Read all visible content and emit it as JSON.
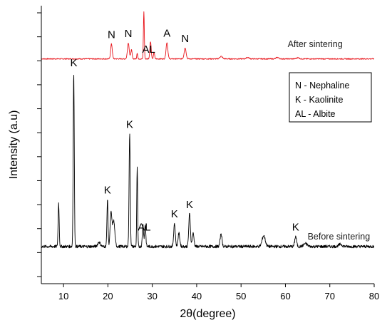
{
  "chart_data": {
    "type": "line",
    "xlabel": "2θ(degree)",
    "ylabel": "Intensity (a.u)",
    "xlim": [
      5,
      80
    ],
    "xticks": [
      10,
      20,
      30,
      40,
      50,
      60,
      70,
      80
    ],
    "xtick_labels": [
      "10",
      "20",
      "30",
      "40",
      "50",
      "60",
      "70",
      "80"
    ],
    "y_tick_count": 12,
    "series": [
      {
        "name": "After sintering",
        "color": "#e8141b",
        "baseline": 0.02,
        "noise": 0.01,
        "peaks": [
          {
            "x": 20.8,
            "y": 0.3,
            "w": 0.18
          },
          {
            "x": 24.6,
            "y": 0.32,
            "w": 0.2
          },
          {
            "x": 25.3,
            "y": 0.18,
            "w": 0.15
          },
          {
            "x": 26.6,
            "y": 0.12,
            "w": 0.1
          },
          {
            "x": 28.1,
            "y": 0.95,
            "w": 0.1
          },
          {
            "x": 29.6,
            "y": 0.35,
            "w": 0.15
          },
          {
            "x": 30.4,
            "y": 0.14,
            "w": 0.12
          },
          {
            "x": 33.3,
            "y": 0.33,
            "w": 0.2
          },
          {
            "x": 37.4,
            "y": 0.22,
            "w": 0.22
          },
          {
            "x": 45.5,
            "y": 0.05,
            "w": 0.3
          },
          {
            "x": 51.5,
            "y": 0.03,
            "w": 0.3
          },
          {
            "x": 58.2,
            "y": 0.03,
            "w": 0.3
          },
          {
            "x": 62.8,
            "y": 0.025,
            "w": 0.3
          }
        ]
      },
      {
        "name": "Before sintering",
        "color": "#000000",
        "baseline": 0.08,
        "noise": 0.02,
        "peaks": [
          {
            "x": 8.9,
            "y": 0.6,
            "w": 0.12
          },
          {
            "x": 12.3,
            "y": 2.4,
            "w": 0.12
          },
          {
            "x": 18.0,
            "y": 0.06,
            "w": 0.3
          },
          {
            "x": 19.9,
            "y": 0.65,
            "w": 0.12
          },
          {
            "x": 20.7,
            "y": 0.45,
            "w": 0.2
          },
          {
            "x": 21.3,
            "y": 0.35,
            "w": 0.25
          },
          {
            "x": 24.9,
            "y": 1.55,
            "w": 0.13
          },
          {
            "x": 26.6,
            "y": 1.1,
            "w": 0.1
          },
          {
            "x": 27.9,
            "y": 0.3,
            "w": 0.14
          },
          {
            "x": 28.4,
            "y": 0.3,
            "w": 0.14
          },
          {
            "x": 35.0,
            "y": 0.32,
            "w": 0.18
          },
          {
            "x": 36.0,
            "y": 0.18,
            "w": 0.2
          },
          {
            "x": 38.4,
            "y": 0.45,
            "w": 0.18
          },
          {
            "x": 39.2,
            "y": 0.18,
            "w": 0.2
          },
          {
            "x": 45.5,
            "y": 0.18,
            "w": 0.2
          },
          {
            "x": 55.1,
            "y": 0.15,
            "w": 0.35
          },
          {
            "x": 62.3,
            "y": 0.14,
            "w": 0.2
          },
          {
            "x": 64.5,
            "y": 0.04,
            "w": 0.4
          },
          {
            "x": 72.4,
            "y": 0.03,
            "w": 0.4
          }
        ]
      }
    ],
    "series_labels": [
      {
        "text": "After sintering",
        "x": 60.5,
        "series": 0
      },
      {
        "text": "Before sintering",
        "x": 65,
        "series": 1
      }
    ],
    "peak_labels": [
      {
        "text": "N",
        "x": 20.8,
        "series": 0
      },
      {
        "text": "N",
        "x": 24.6,
        "series": 0
      },
      {
        "text": "AL",
        "x": 29.2,
        "series": 0
      },
      {
        "text": "A",
        "x": 33.3,
        "series": 0
      },
      {
        "text": "N",
        "x": 37.4,
        "series": 0
      },
      {
        "text": "K",
        "x": 12.3,
        "series": 1
      },
      {
        "text": "K",
        "x": 19.9,
        "series": 1
      },
      {
        "text": "K",
        "x": 24.9,
        "series": 1
      },
      {
        "text": "AL",
        "x": 28.2,
        "series": 1
      },
      {
        "text": "K",
        "x": 35.0,
        "series": 1
      },
      {
        "text": "K",
        "x": 38.4,
        "series": 1
      },
      {
        "text": "K",
        "x": 62.3,
        "series": 1
      }
    ],
    "legend": {
      "position": "right",
      "entries": [
        "N - Nephaline",
        "K  - Kaolinite",
        "AL - Albite"
      ]
    }
  }
}
